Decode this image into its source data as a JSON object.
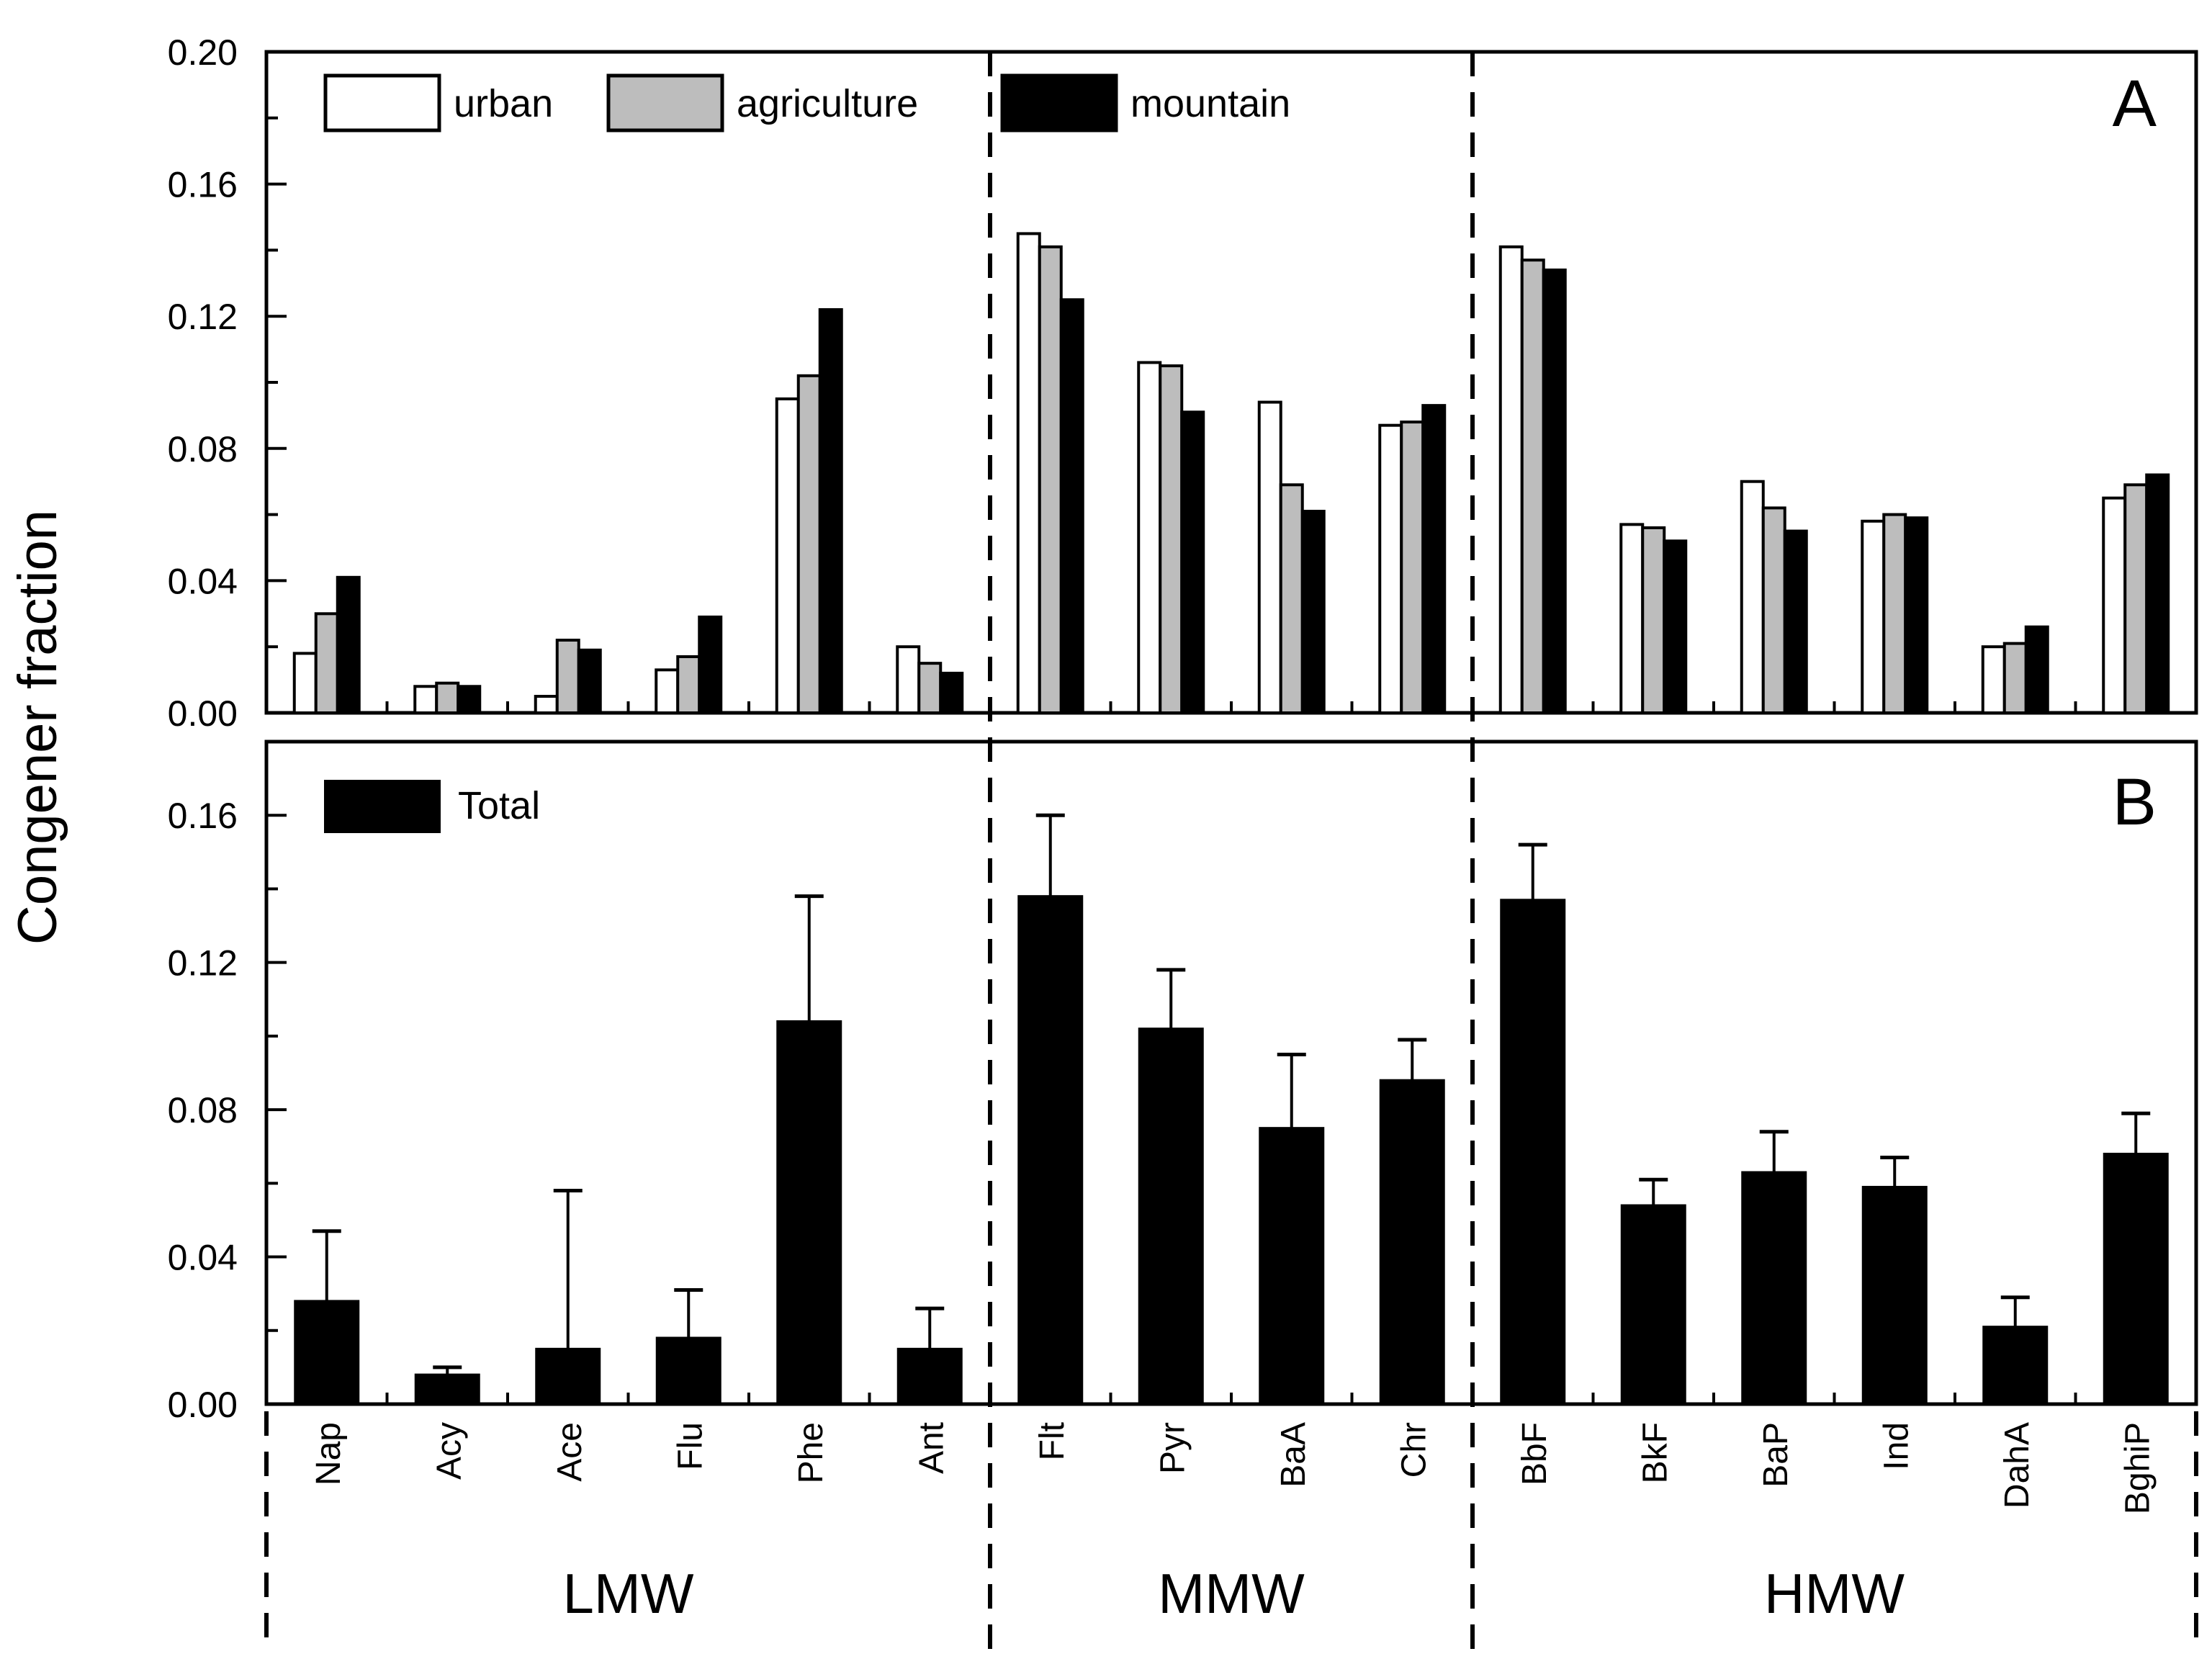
{
  "chart_data": [
    {
      "type": "bar",
      "panel": "A",
      "ylabel": "Congener fraction",
      "ylim": [
        0,
        0.2
      ],
      "yticks": [
        "0.00",
        "0.04",
        "0.08",
        "0.12",
        "0.16",
        "0.20"
      ],
      "categories": [
        "Nap",
        "Acy",
        "Ace",
        "Flu",
        "Phe",
        "Ant",
        "Flt",
        "Pyr",
        "BaA",
        "Chr",
        "BbF",
        "BkF",
        "BaP",
        "Ind",
        "DahA",
        "BghiP"
      ],
      "series": [
        {
          "name": "urban",
          "color": "#ffffff",
          "values": [
            0.018,
            0.008,
            0.005,
            0.013,
            0.095,
            0.02,
            0.145,
            0.106,
            0.094,
            0.087,
            0.141,
            0.057,
            0.07,
            0.058,
            0.02,
            0.065
          ]
        },
        {
          "name": "agriculture",
          "color": "#bdbdbd",
          "values": [
            0.03,
            0.009,
            0.022,
            0.017,
            0.102,
            0.015,
            0.141,
            0.105,
            0.069,
            0.088,
            0.137,
            0.056,
            0.062,
            0.06,
            0.021,
            0.069
          ]
        },
        {
          "name": "mountain",
          "color": "#000000",
          "values": [
            0.041,
            0.008,
            0.019,
            0.029,
            0.122,
            0.012,
            0.125,
            0.091,
            0.061,
            0.093,
            0.134,
            0.052,
            0.055,
            0.059,
            0.026,
            0.072
          ]
        }
      ],
      "legend": [
        "urban",
        "agriculture",
        "mountain"
      ],
      "legend_position": "top-left"
    },
    {
      "type": "bar",
      "panel": "B",
      "ylabel": "Congener fraction",
      "ylim": [
        0,
        0.18
      ],
      "yticks": [
        "0.00",
        "0.04",
        "0.08",
        "0.12",
        "0.16"
      ],
      "categories": [
        "Nap",
        "Acy",
        "Ace",
        "Flu",
        "Phe",
        "Ant",
        "Flt",
        "Pyr",
        "BaA",
        "Chr",
        "BbF",
        "BkF",
        "BaP",
        "Ind",
        "DahA",
        "BghiP"
      ],
      "series": [
        {
          "name": "Total",
          "color": "#000000",
          "values": [
            0.028,
            0.008,
            0.015,
            0.018,
            0.104,
            0.015,
            0.138,
            0.102,
            0.075,
            0.088,
            0.137,
            0.054,
            0.063,
            0.059,
            0.021,
            0.068
          ],
          "errors": [
            0.019,
            0.002,
            0.043,
            0.013,
            0.034,
            0.011,
            0.022,
            0.016,
            0.02,
            0.011,
            0.015,
            0.007,
            0.011,
            0.008,
            0.008,
            0.011
          ]
        }
      ],
      "legend": [
        "Total"
      ],
      "legend_position": "top-left"
    }
  ],
  "groups": [
    {
      "label": "LMW",
      "from": 0,
      "to": 5
    },
    {
      "label": "MMW",
      "from": 6,
      "to": 9
    },
    {
      "label": "HMW",
      "from": 10,
      "to": 15
    }
  ]
}
